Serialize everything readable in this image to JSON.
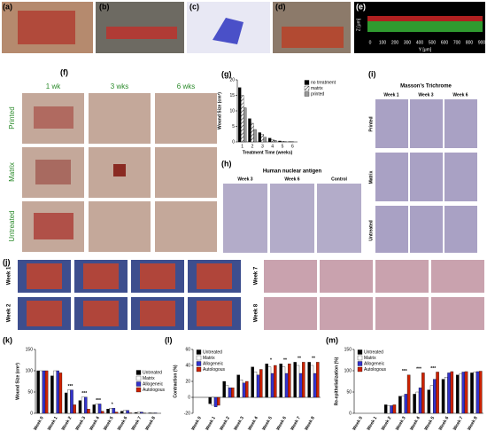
{
  "panel_labels": [
    "(a)",
    "(b)",
    "(c)",
    "(d)",
    "(e)",
    "(f)",
    "(g)",
    "(h)",
    "(i)",
    "(j)",
    "(k)",
    "(l)",
    "(m)"
  ],
  "e_axes": {
    "z_label": "Z [μm]",
    "y_label": "Y [μm]",
    "x_ticks": [
      "0",
      "100",
      "200",
      "300",
      "400",
      "500",
      "600",
      "700",
      "800",
      "900"
    ]
  },
  "f": {
    "columns": [
      "1 wk",
      "3 wks",
      "6 wks"
    ],
    "rows": [
      "Printed",
      "Matrix",
      "Untreated"
    ]
  },
  "h": {
    "title": "Human nuclear antigen",
    "columns": [
      "Week 3",
      "Week 6",
      "Control"
    ]
  },
  "i": {
    "title": "Masson's Trichrome",
    "columns": [
      "Week 1",
      "Week 3",
      "Week 6"
    ],
    "rows": [
      "Printed",
      "Matrix",
      "Untreated"
    ]
  },
  "j": {
    "rows": [
      "Week 1",
      "Week 2",
      "Week 7",
      "Week 8"
    ]
  },
  "chart_data": [
    {
      "type": "bar",
      "y_label": "Wound Size (cm²)",
      "x_label": "Treatment Time (weeks)",
      "categories": [
        "1",
        "2",
        "3",
        "4",
        "5",
        "6"
      ],
      "ylim": [
        0,
        20
      ],
      "yticks": [
        0,
        5,
        10,
        15,
        20
      ],
      "legend": "upper right",
      "series": [
        {
          "name": "no treatment",
          "color": "#000000",
          "values": [
            17.5,
            7.5,
            3,
            1.2,
            0.3,
            0.1
          ]
        },
        {
          "name": "matrix",
          "color": "#ffffff",
          "hatch": true,
          "values": [
            15,
            6,
            2.5,
            0.8,
            0.2,
            0.1
          ]
        },
        {
          "name": "printed",
          "color": "#999999",
          "values": [
            11,
            4,
            1.5,
            0.5,
            0.1,
            0
          ]
        }
      ]
    },
    {
      "type": "bar",
      "y_label": "Wound Size (cm²)",
      "categories": [
        "Week 0",
        "Week 1",
        "Week 2",
        "Week 3",
        "Week 4",
        "Week 5",
        "Week 6",
        "Week 7",
        "Week 8"
      ],
      "ylim": [
        0,
        150
      ],
      "yticks": [
        0,
        50,
        100,
        150
      ],
      "legend": "center right",
      "annotations": [
        null,
        null,
        "***",
        "***",
        "***",
        "*",
        null,
        null,
        null
      ],
      "series": [
        {
          "name": "Untreated",
          "color": "#000000",
          "values": [
            100,
            88,
            48,
            30,
            20,
            10,
            5,
            2,
            1
          ]
        },
        {
          "name": "Matrix",
          "color": "#ffffff",
          "values": [
            100,
            100,
            55,
            38,
            22,
            12,
            7,
            3,
            1
          ]
        },
        {
          "name": "Allogeneic",
          "color": "#3333cc",
          "values": [
            100,
            100,
            55,
            38,
            22,
            12,
            7,
            3,
            1
          ]
        },
        {
          "name": "Autologous",
          "color": "#cc2200",
          "values": [
            100,
            95,
            20,
            10,
            5,
            3,
            1,
            0.5,
            0
          ]
        }
      ]
    },
    {
      "type": "bar",
      "y_label": "Contraction (%)",
      "categories": [
        "Week 0",
        "Week 1",
        "Week 2",
        "Week 3",
        "Week 4",
        "Week 5",
        "Week 6",
        "Week 7",
        "Week 8"
      ],
      "ylim": [
        -20,
        60
      ],
      "yticks": [
        -20,
        0,
        20,
        40,
        60
      ],
      "legend": "upper left",
      "annotations": [
        null,
        null,
        null,
        null,
        null,
        "*",
        "**",
        "**",
        "**"
      ],
      "series": [
        {
          "name": "Untreated",
          "color": "#000000",
          "values": [
            0,
            -8,
            20,
            28,
            38,
            42,
            42,
            44,
            44
          ]
        },
        {
          "name": "Matrix",
          "color": "#ffffff",
          "values": [
            0,
            -10,
            15,
            22,
            32,
            38,
            38,
            40,
            40
          ]
        },
        {
          "name": "Allogeneic",
          "color": "#3333cc",
          "values": [
            0,
            -12,
            12,
            18,
            28,
            30,
            30,
            30,
            30
          ]
        },
        {
          "name": "Autologous",
          "color": "#cc2200",
          "values": [
            0,
            -10,
            12,
            20,
            35,
            40,
            42,
            44,
            44
          ]
        }
      ]
    },
    {
      "type": "bar",
      "y_label": "Re-epithelialization (%)",
      "categories": [
        "Week 0",
        "Week 1",
        "Week 2",
        "Week 3",
        "Week 4",
        "Week 5",
        "Week 6",
        "Week 7",
        "Week 8"
      ],
      "ylim": [
        0,
        150
      ],
      "yticks": [
        0,
        50,
        100,
        150
      ],
      "legend": "upper left",
      "annotations": [
        null,
        null,
        null,
        "***",
        "***",
        "***",
        null,
        null,
        null
      ],
      "series": [
        {
          "name": "Untreated",
          "color": "#000000",
          "values": [
            0,
            0,
            20,
            40,
            45,
            55,
            80,
            90,
            95
          ]
        },
        {
          "name": "Matrix",
          "color": "#ffffff",
          "values": [
            0,
            0,
            18,
            40,
            50,
            65,
            85,
            92,
            97
          ]
        },
        {
          "name": "Allogeneic",
          "color": "#3333cc",
          "values": [
            0,
            0,
            18,
            45,
            60,
            80,
            95,
            97,
            98
          ]
        },
        {
          "name": "Autologous",
          "color": "#cc2200",
          "values": [
            0,
            0,
            20,
            90,
            95,
            97,
            98,
            98,
            99
          ]
        }
      ]
    }
  ]
}
